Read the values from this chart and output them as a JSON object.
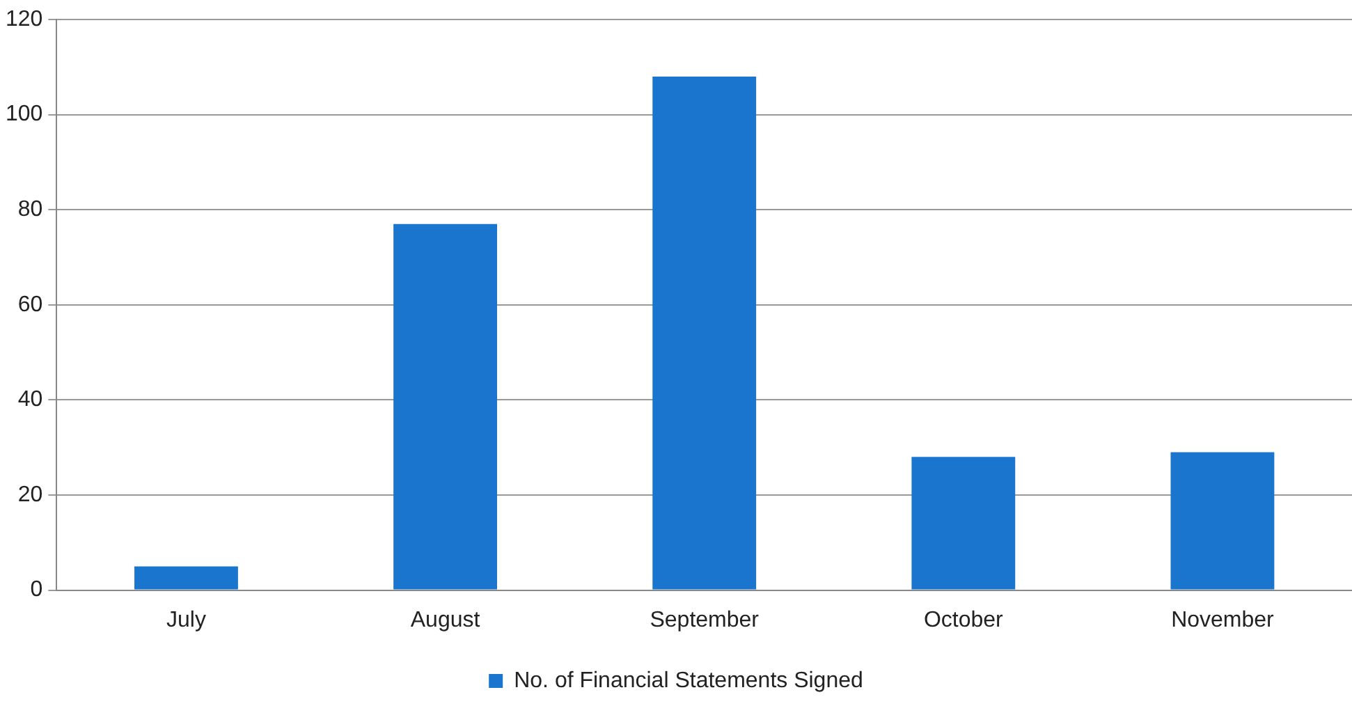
{
  "chart_data": {
    "type": "bar",
    "categories": [
      "July",
      "August",
      "September",
      "October",
      "November"
    ],
    "series": [
      {
        "name": "No. of Financial Statements Signed",
        "color": "#1a75cf",
        "values": [
          5,
          77,
          108,
          28,
          29
        ]
      }
    ],
    "ylim": [
      0,
      120
    ],
    "yticks": [
      0,
      20,
      40,
      60,
      80,
      100,
      120
    ],
    "grid": "y",
    "legend": "bottom"
  }
}
